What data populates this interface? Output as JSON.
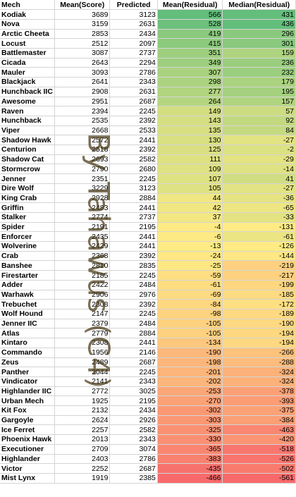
{
  "headers": [
    "Mech",
    "Mean(Score)",
    "Predicted",
    "Mean(Residual)",
    "Median(Residual)"
  ],
  "watermark": "By Tahawus (C4)",
  "rows": [
    [
      "Kodiak",
      "3689",
      "3123",
      "566",
      "431"
    ],
    [
      "Nova",
      "3159",
      "2631",
      "528",
      "436"
    ],
    [
      "Arctic Cheeta",
      "2853",
      "2434",
      "419",
      "296"
    ],
    [
      "Locust",
      "2512",
      "2097",
      "415",
      "301"
    ],
    [
      "Battlemaster",
      "3087",
      "2737",
      "351",
      "159"
    ],
    [
      "Cicada",
      "2643",
      "2294",
      "349",
      "236"
    ],
    [
      "Mauler",
      "3093",
      "2786",
      "307",
      "232"
    ],
    [
      "Blackjack",
      "2641",
      "2343",
      "298",
      "179"
    ],
    [
      "Hunchback IIC",
      "2908",
      "2631",
      "277",
      "195"
    ],
    [
      "Awesome",
      "2951",
      "2687",
      "264",
      "157"
    ],
    [
      "Raven",
      "2394",
      "2245",
      "149",
      "57"
    ],
    [
      "Hunchback",
      "2535",
      "2392",
      "143",
      "92"
    ],
    [
      "Viper",
      "2668",
      "2533",
      "135",
      "84"
    ],
    [
      "Shadow Hawk",
      "2572",
      "2441",
      "130",
      "-27"
    ],
    [
      "Centurion",
      "2518",
      "2392",
      "125",
      "-2"
    ],
    [
      "Shadow Cat",
      "2693",
      "2582",
      "111",
      "-29"
    ],
    [
      "Stormcrow",
      "2790",
      "2680",
      "109",
      "-14"
    ],
    [
      "Jenner",
      "2351",
      "2245",
      "107",
      "41"
    ],
    [
      "Dire Wolf",
      "3229",
      "3123",
      "105",
      "-27"
    ],
    [
      "King Crab",
      "2928",
      "2884",
      "44",
      "-36"
    ],
    [
      "Griffin",
      "2483",
      "2441",
      "42",
      "-65"
    ],
    [
      "Stalker",
      "2774",
      "2737",
      "37",
      "-33"
    ],
    [
      "Spider",
      "2191",
      "2195",
      "-4",
      "-131"
    ],
    [
      "Enforcer",
      "2435",
      "2441",
      "-6",
      "-61"
    ],
    [
      "Wolverine",
      "2429",
      "2441",
      "-13",
      "-126"
    ],
    [
      "Crab",
      "2368",
      "2392",
      "-24",
      "-144"
    ],
    [
      "Banshee",
      "2810",
      "2835",
      "-25",
      "-219"
    ],
    [
      "Firestarter",
      "2185",
      "2245",
      "-59",
      "-217"
    ],
    [
      "Adder",
      "2422",
      "2484",
      "-61",
      "-199"
    ],
    [
      "Warhawk",
      "2906",
      "2976",
      "-69",
      "-185"
    ],
    [
      "Trebuchet",
      "2308",
      "2392",
      "-84",
      "-172"
    ],
    [
      "Wolf Hound",
      "2147",
      "2245",
      "-98",
      "-189"
    ],
    [
      "Jenner IIC",
      "2379",
      "2484",
      "-105",
      "-190"
    ],
    [
      "Atlas",
      "2779",
      "2884",
      "-105",
      "-194"
    ],
    [
      "Kintaro",
      "2308",
      "2441",
      "-134",
      "-194"
    ],
    [
      "Commando",
      "1956",
      "2146",
      "-190",
      "-266"
    ],
    [
      "Zeus",
      "2489",
      "2687",
      "-198",
      "-288"
    ],
    [
      "Panther",
      "2044",
      "2245",
      "-201",
      "-324"
    ],
    [
      "Vindicator",
      "2141",
      "2343",
      "-202",
      "-324"
    ],
    [
      "Highlander IIC",
      "2772",
      "3025",
      "-253",
      "-378"
    ],
    [
      "Urban Mech",
      "1925",
      "2195",
      "-270",
      "-393"
    ],
    [
      "Kit Fox",
      "2132",
      "2434",
      "-302",
      "-375"
    ],
    [
      "Gargoyle",
      "2624",
      "2926",
      "-303",
      "-384"
    ],
    [
      "Ice Ferret",
      "2257",
      "2582",
      "-325",
      "-463"
    ],
    [
      "Phoenix Hawk",
      "2013",
      "2343",
      "-330",
      "-420"
    ],
    [
      "Executioner",
      "2709",
      "3074",
      "-365",
      "-518"
    ],
    [
      "Highlander",
      "2403",
      "2786",
      "-383",
      "-526"
    ],
    [
      "Victor",
      "2252",
      "2687",
      "-435",
      "-502"
    ],
    [
      "Mist Lynx",
      "1919",
      "2385",
      "-466",
      "-561"
    ]
  ],
  "colors": {
    "high": "#63be7b",
    "mid": "#ffeb84",
    "low": "#f8696b"
  }
}
